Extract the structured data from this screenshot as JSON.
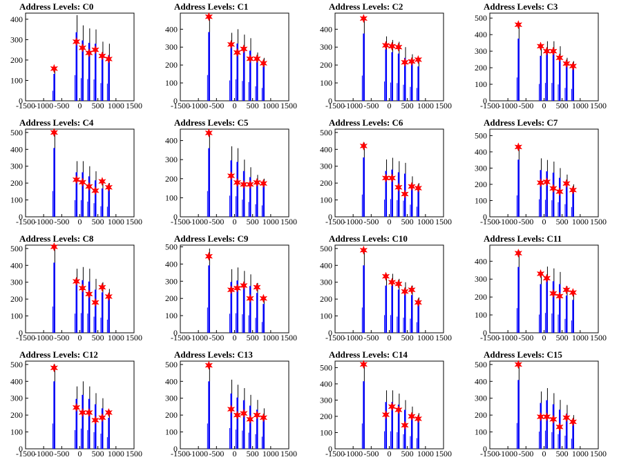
{
  "colors": {
    "bar": "#0000ff",
    "marker": "#ff0000",
    "axis": "#000000",
    "background": "#ffffff"
  },
  "chart_data": [
    {
      "type": "bar",
      "title": "Address Levels: C0",
      "xlim": [
        -1500,
        1500
      ],
      "ylim": [
        0,
        430
      ],
      "xticks": [
        -1500,
        -1000,
        -500,
        0,
        500,
        1000,
        1500
      ],
      "xtick_labels": [
        "-1500",
        "-1000",
        "-500",
        "0",
        "500",
        "1000",
        "1500"
      ],
      "yticks": [
        0,
        100,
        200,
        300,
        400
      ],
      "x": [
        -710,
        -95,
        75,
        255,
        430,
        620,
        800
      ],
      "values": [
        165,
        420,
        370,
        355,
        350,
        290,
        280
      ],
      "peaks": [
        158,
        290,
        260,
        235,
        250,
        220,
        205
      ]
    },
    {
      "type": "bar",
      "title": "Address Levels: C1",
      "xlim": [
        -1500,
        1500
      ],
      "ylim": [
        0,
        490
      ],
      "xticks": [
        -1500,
        -1000,
        -500,
        0,
        500,
        1000,
        1500
      ],
      "xtick_labels": [
        "-1500",
        "-1000",
        "-500",
        "0",
        "500",
        "1000",
        "1500"
      ],
      "yticks": [
        0,
        100,
        200,
        300,
        400
      ],
      "x": [
        -710,
        -95,
        75,
        255,
        430,
        620,
        800
      ],
      "values": [
        480,
        380,
        400,
        370,
        350,
        270,
        240
      ],
      "peaks": [
        470,
        315,
        270,
        290,
        235,
        235,
        210
      ]
    },
    {
      "type": "bar",
      "title": "Address Levels: C2",
      "xlim": [
        -1500,
        1500
      ],
      "ylim": [
        0,
        490
      ],
      "xticks": [
        -1500,
        -1000,
        -500,
        0,
        500,
        1000,
        1500
      ],
      "xtick_labels": [
        "-1500",
        "-1000",
        "-500",
        "0",
        "500",
        "1000",
        "1500"
      ],
      "yticks": [
        0,
        100,
        200,
        300,
        400
      ],
      "x": [
        -710,
        -95,
        75,
        255,
        430,
        620,
        800
      ],
      "values": [
        470,
        360,
        340,
        330,
        300,
        260,
        240
      ],
      "peaks": [
        460,
        310,
        305,
        300,
        215,
        220,
        230
      ]
    },
    {
      "type": "bar",
      "title": "Address Levels: C3",
      "xlim": [
        -1500,
        1500
      ],
      "ylim": [
        0,
        530
      ],
      "xticks": [
        -1500,
        -1000,
        -500,
        0,
        500,
        1000,
        1500
      ],
      "xtick_labels": [
        "-1500",
        "-1000",
        "-500",
        "0",
        "500",
        "1000",
        "1500"
      ],
      "yticks": [
        0,
        100,
        200,
        300,
        400,
        500
      ],
      "x": [
        -710,
        -95,
        75,
        255,
        430,
        620,
        800
      ],
      "values": [
        470,
        340,
        360,
        360,
        330,
        260,
        240
      ],
      "peaks": [
        460,
        330,
        300,
        300,
        260,
        225,
        210
      ]
    },
    {
      "type": "bar",
      "title": "Address Levels: C4",
      "xlim": [
        -1500,
        1500
      ],
      "ylim": [
        0,
        520
      ],
      "xticks": [
        -1500,
        -1000,
        -500,
        0,
        500,
        1000,
        1500
      ],
      "xtick_labels": [
        "-1500",
        "-1000",
        "-500",
        "0",
        "500",
        "1000",
        "1500"
      ],
      "yticks": [
        0,
        100,
        200,
        300,
        400,
        500
      ],
      "x": [
        -710,
        -95,
        75,
        255,
        430,
        620,
        800
      ],
      "values": [
        510,
        330,
        330,
        300,
        270,
        210,
        200
      ],
      "peaks": [
        500,
        220,
        205,
        180,
        155,
        210,
        175
      ]
    },
    {
      "type": "bar",
      "title": "Address Levels: C5",
      "xlim": [
        -1500,
        1500
      ],
      "ylim": [
        0,
        460
      ],
      "xticks": [
        -1500,
        -1000,
        -500,
        0,
        500,
        1000,
        1500
      ],
      "xtick_labels": [
        "-1500",
        "-1000",
        "-500",
        "0",
        "500",
        "1000",
        "1500"
      ],
      "yticks": [
        0,
        100,
        200,
        300,
        400
      ],
      "x": [
        -710,
        -95,
        75,
        255,
        430,
        620,
        800
      ],
      "values": [
        450,
        370,
        360,
        300,
        260,
        220,
        200
      ],
      "peaks": [
        440,
        215,
        180,
        170,
        170,
        180,
        175
      ]
    },
    {
      "type": "bar",
      "title": "Address Levels: C6",
      "xlim": [
        -1500,
        1500
      ],
      "ylim": [
        0,
        520
      ],
      "xticks": [
        -1500,
        -1000,
        -500,
        0,
        500,
        1000,
        1500
      ],
      "xtick_labels": [
        "-1500",
        "-1000",
        "-500",
        "0",
        "500",
        "1000",
        "1500"
      ],
      "yticks": [
        0,
        100,
        200,
        300,
        400,
        500
      ],
      "x": [
        -710,
        -95,
        75,
        255,
        430,
        620,
        800
      ],
      "values": [
        440,
        340,
        350,
        330,
        320,
        240,
        200
      ],
      "peaks": [
        420,
        230,
        230,
        175,
        135,
        180,
        170
      ]
    },
    {
      "type": "bar",
      "title": "Address Levels: C7",
      "xlim": [
        -1500,
        1500
      ],
      "ylim": [
        0,
        540
      ],
      "xticks": [
        -1500,
        -1000,
        -500,
        0,
        500,
        1000,
        1500
      ],
      "xtick_labels": [
        "-1500",
        "-1000",
        "-500",
        "0",
        "500",
        "1000",
        "1500"
      ],
      "yticks": [
        0,
        100,
        200,
        300,
        400,
        500
      ],
      "x": [
        -710,
        -95,
        75,
        255,
        430,
        620,
        800
      ],
      "values": [
        440,
        360,
        350,
        340,
        300,
        260,
        200
      ],
      "peaks": [
        430,
        210,
        215,
        175,
        155,
        205,
        165
      ]
    },
    {
      "type": "bar",
      "title": "Address Levels: C8",
      "xlim": [
        -1500,
        1500
      ],
      "ylim": [
        0,
        520
      ],
      "xticks": [
        -1500,
        -1000,
        -500,
        0,
        500,
        1000,
        1500
      ],
      "xtick_labels": [
        "-1500",
        "-1000",
        "-500",
        "0",
        "500",
        "1000",
        "1500"
      ],
      "yticks": [
        0,
        100,
        200,
        300,
        400,
        500
      ],
      "x": [
        -710,
        -95,
        75,
        255,
        430,
        620,
        800
      ],
      "values": [
        520,
        380,
        390,
        380,
        320,
        300,
        260
      ],
      "peaks": [
        510,
        305,
        265,
        230,
        180,
        270,
        215
      ]
    },
    {
      "type": "bar",
      "title": "Address Levels: C9",
      "xlim": [
        -1500,
        1500
      ],
      "ylim": [
        0,
        510
      ],
      "xticks": [
        -1500,
        -1000,
        -500,
        0,
        500,
        1000,
        1500
      ],
      "xtick_labels": [
        "-1500",
        "-1000",
        "-500",
        "0",
        "500",
        "1000",
        "1500"
      ],
      "yticks": [
        0,
        100,
        200,
        300,
        400,
        500
      ],
      "x": [
        -710,
        -95,
        75,
        255,
        430,
        620,
        800
      ],
      "values": [
        490,
        370,
        380,
        360,
        340,
        290,
        210
      ],
      "peaks": [
        445,
        250,
        260,
        275,
        200,
        265,
        200
      ]
    },
    {
      "type": "bar",
      "title": "Address Levels: C10",
      "xlim": [
        -1500,
        1500
      ],
      "ylim": [
        0,
        520
      ],
      "xticks": [
        -1500,
        -1000,
        -500,
        0,
        500,
        1000,
        1500
      ],
      "xtick_labels": [
        "-1500",
        "-1000",
        "-500",
        "0",
        "500",
        "1000",
        "1500"
      ],
      "yticks": [
        0,
        100,
        200,
        300,
        400,
        500
      ],
      "x": [
        -710,
        -95,
        75,
        255,
        430,
        620,
        800
      ],
      "values": [
        500,
        350,
        350,
        320,
        300,
        280,
        210
      ],
      "peaks": [
        490,
        335,
        300,
        290,
        245,
        255,
        180
      ]
    },
    {
      "type": "bar",
      "title": "Address Levels: C11",
      "xlim": [
        -1500,
        1500
      ],
      "ylim": [
        0,
        490
      ],
      "xticks": [
        -1500,
        -1000,
        -500,
        0,
        500,
        1000,
        1500
      ],
      "xtick_labels": [
        "-1500",
        "-1000",
        "-500",
        "0",
        "500",
        "1000",
        "1500"
      ],
      "yticks": [
        0,
        100,
        200,
        300,
        400
      ],
      "x": [
        -710,
        -95,
        75,
        255,
        430,
        620,
        800
      ],
      "values": [
        460,
        340,
        370,
        360,
        340,
        260,
        230
      ],
      "peaks": [
        445,
        330,
        305,
        220,
        205,
        240,
        225
      ]
    },
    {
      "type": "bar",
      "title": "Address Levels: C12",
      "xlim": [
        -1500,
        1500
      ],
      "ylim": [
        0,
        520
      ],
      "xticks": [
        -1500,
        -1000,
        -500,
        0,
        500,
        1000,
        1500
      ],
      "xtick_labels": [
        "-1500",
        "-1000",
        "-500",
        "0",
        "500",
        "1000",
        "1500"
      ],
      "yticks": [
        0,
        100,
        200,
        300,
        400,
        500
      ],
      "x": [
        -710,
        -95,
        75,
        255,
        430,
        620,
        800
      ],
      "values": [
        500,
        370,
        400,
        370,
        330,
        300,
        230
      ],
      "peaks": [
        480,
        245,
        215,
        215,
        170,
        185,
        215
      ]
    },
    {
      "type": "bar",
      "title": "Address Levels: C13",
      "xlim": [
        -1500,
        1500
      ],
      "ylim": [
        0,
        520
      ],
      "xticks": [
        -1500,
        -1000,
        -500,
        0,
        500,
        1000,
        1500
      ],
      "xtick_labels": [
        "-1500",
        "-1000",
        "-500",
        "0",
        "500",
        "1000",
        "1500"
      ],
      "yticks": [
        0,
        100,
        200,
        300,
        400,
        500
      ],
      "x": [
        -710,
        -95,
        75,
        255,
        430,
        620,
        800
      ],
      "values": [
        500,
        410,
        380,
        360,
        320,
        290,
        240
      ],
      "peaks": [
        495,
        235,
        200,
        210,
        175,
        200,
        185
      ]
    },
    {
      "type": "bar",
      "title": "Address Levels: C14",
      "xlim": [
        -1500,
        1500
      ],
      "ylim": [
        0,
        540
      ],
      "xticks": [
        -1500,
        -1000,
        -500,
        0,
        500,
        1000,
        1500
      ],
      "xtick_labels": [
        "-1500",
        "-1000",
        "-500",
        "0",
        "500",
        "1000",
        "1500"
      ],
      "yticks": [
        0,
        100,
        200,
        300,
        400,
        500
      ],
      "x": [
        -710,
        -95,
        75,
        255,
        430,
        620,
        800
      ],
      "values": [
        520,
        360,
        360,
        340,
        300,
        260,
        220
      ],
      "peaks": [
        520,
        210,
        260,
        240,
        145,
        200,
        185
      ]
    },
    {
      "type": "bar",
      "title": "Address Levels: C15",
      "xlim": [
        -1500,
        1500
      ],
      "ylim": [
        0,
        520
      ],
      "xticks": [
        -1500,
        -1000,
        -500,
        0,
        500,
        1000,
        1500
      ],
      "xtick_labels": [
        "-1500",
        "-1000",
        "-500",
        "0",
        "500",
        "1000",
        "1500"
      ],
      "yticks": [
        0,
        100,
        200,
        300,
        400,
        500
      ],
      "x": [
        -710,
        -95,
        75,
        255,
        430,
        620,
        800
      ],
      "values": [
        510,
        340,
        360,
        330,
        290,
        260,
        200
      ],
      "peaks": [
        500,
        190,
        190,
        175,
        130,
        185,
        160
      ]
    }
  ]
}
